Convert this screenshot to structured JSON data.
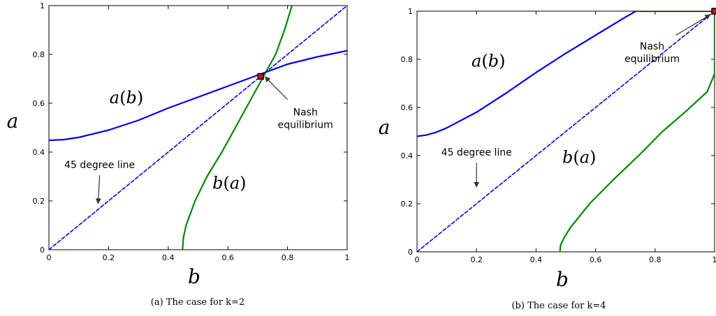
{
  "chart_data": [
    {
      "type": "line",
      "caption": "(a) The case for k=2",
      "xlabel": "b",
      "ylabel": "a",
      "xlim": [
        0,
        1
      ],
      "ylim": [
        0,
        1
      ],
      "xticks": [
        "0",
        "0.2",
        "0.4",
        "0.6",
        "0.8",
        "1"
      ],
      "yticks": [
        "0",
        "0.2",
        "0.4",
        "0.6",
        "0.8",
        "1"
      ],
      "grid": false,
      "series": [
        {
          "name": "a(b)",
          "color": "#0000ee",
          "style": "solid",
          "points": [
            [
              0,
              0.448
            ],
            [
              0.05,
              0.451
            ],
            [
              0.1,
              0.46
            ],
            [
              0.2,
              0.49
            ],
            [
              0.3,
              0.53
            ],
            [
              0.4,
              0.58
            ],
            [
              0.5,
              0.625
            ],
            [
              0.6,
              0.67
            ],
            [
              0.7,
              0.715
            ],
            [
              0.8,
              0.76
            ],
            [
              0.9,
              0.79
            ],
            [
              1.0,
              0.815
            ]
          ]
        },
        {
          "name": "b(a)",
          "color": "#008800",
          "style": "solid",
          "points": [
            [
              0.448,
              0
            ],
            [
              0.451,
              0.05
            ],
            [
              0.46,
              0.1
            ],
            [
              0.49,
              0.2
            ],
            [
              0.53,
              0.3
            ],
            [
              0.58,
              0.4
            ],
            [
              0.625,
              0.5
            ],
            [
              0.67,
              0.6
            ],
            [
              0.715,
              0.7
            ],
            [
              0.76,
              0.8
            ],
            [
              0.79,
              0.9
            ],
            [
              0.815,
              1.0
            ]
          ]
        },
        {
          "name": "45 degree line",
          "color": "#0000ee",
          "style": "dashed",
          "points": [
            [
              0,
              0
            ],
            [
              1,
              1
            ]
          ]
        }
      ],
      "labels": [
        {
          "text": "a(b)",
          "x": 0.26,
          "y": 0.6
        },
        {
          "text": "b(a)",
          "x": 0.605,
          "y": 0.25
        }
      ],
      "annotations": [
        {
          "text": [
            "45 degree line"
          ],
          "text_at": [
            0.17,
            0.335
          ],
          "arrow_from": [
            0.17,
            0.305
          ],
          "arrow_to": [
            0.165,
            0.19
          ]
        },
        {
          "text": [
            "Nash",
            "equilibrium"
          ],
          "text_at": [
            0.86,
            0.55
          ],
          "arrow_from": [
            0.8,
            0.615
          ],
          "arrow_to": [
            0.725,
            0.708
          ]
        }
      ],
      "marker": {
        "x": 0.71,
        "y": 0.71,
        "fill": "#cc1111",
        "stroke": "#000000"
      }
    },
    {
      "type": "line",
      "caption": "(b) The case for k=4",
      "xlabel": "b",
      "ylabel": "a",
      "xlim": [
        0,
        1
      ],
      "ylim": [
        0,
        1
      ],
      "xticks": [
        "0",
        "0.2",
        "0.4",
        "0.6",
        "0.8",
        "1"
      ],
      "yticks": [
        "0",
        "0.2",
        "0.4",
        "0.6",
        "0.8",
        "1"
      ],
      "grid": false,
      "series": [
        {
          "name": "a(b)",
          "color": "#0000ee",
          "style": "solid",
          "points": [
            [
              0,
              0.48
            ],
            [
              0.03,
              0.485
            ],
            [
              0.06,
              0.495
            ],
            [
              0.1,
              0.515
            ],
            [
              0.2,
              0.58
            ],
            [
              0.3,
              0.66
            ],
            [
              0.4,
              0.745
            ],
            [
              0.5,
              0.825
            ],
            [
              0.6,
              0.9
            ],
            [
              0.7,
              0.975
            ],
            [
              0.735,
              1.0
            ],
            [
              1.0,
              1.0
            ]
          ]
        },
        {
          "name": "b(a)",
          "color": "#008800",
          "style": "solid",
          "points": [
            [
              0.48,
              0
            ],
            [
              0.483,
              0.03
            ],
            [
              0.495,
              0.06
            ],
            [
              0.515,
              0.1
            ],
            [
              0.58,
              0.2
            ],
            [
              0.66,
              0.3
            ],
            [
              0.745,
              0.4
            ],
            [
              0.825,
              0.5
            ],
            [
              0.9,
              0.58
            ],
            [
              0.975,
              0.665
            ],
            [
              1.0,
              0.74
            ],
            [
              1.0,
              1.0
            ]
          ]
        },
        {
          "name": "45 degree line",
          "color": "#0000ee",
          "style": "dashed",
          "points": [
            [
              0,
              0
            ],
            [
              1,
              1
            ]
          ]
        }
      ],
      "labels": [
        {
          "text": "a(b)",
          "x": 0.24,
          "y": 0.77
        },
        {
          "text": "b(a)",
          "x": 0.545,
          "y": 0.37
        }
      ],
      "annotations": [
        {
          "text": [
            "45 degree line"
          ],
          "text_at": [
            0.2,
            0.4
          ],
          "arrow_from": [
            0.2,
            0.37
          ],
          "arrow_to": [
            0.2,
            0.27
          ]
        },
        {
          "text": [
            "Nash",
            "equilibrium"
          ],
          "text_at": [
            0.79,
            0.84
          ],
          "arrow_from": [
            0.87,
            0.9
          ],
          "arrow_to": [
            0.985,
            0.985
          ]
        }
      ],
      "marker": {
        "x": 1.0,
        "y": 1.0,
        "fill": "#cc1111",
        "stroke": "#000000"
      }
    }
  ]
}
